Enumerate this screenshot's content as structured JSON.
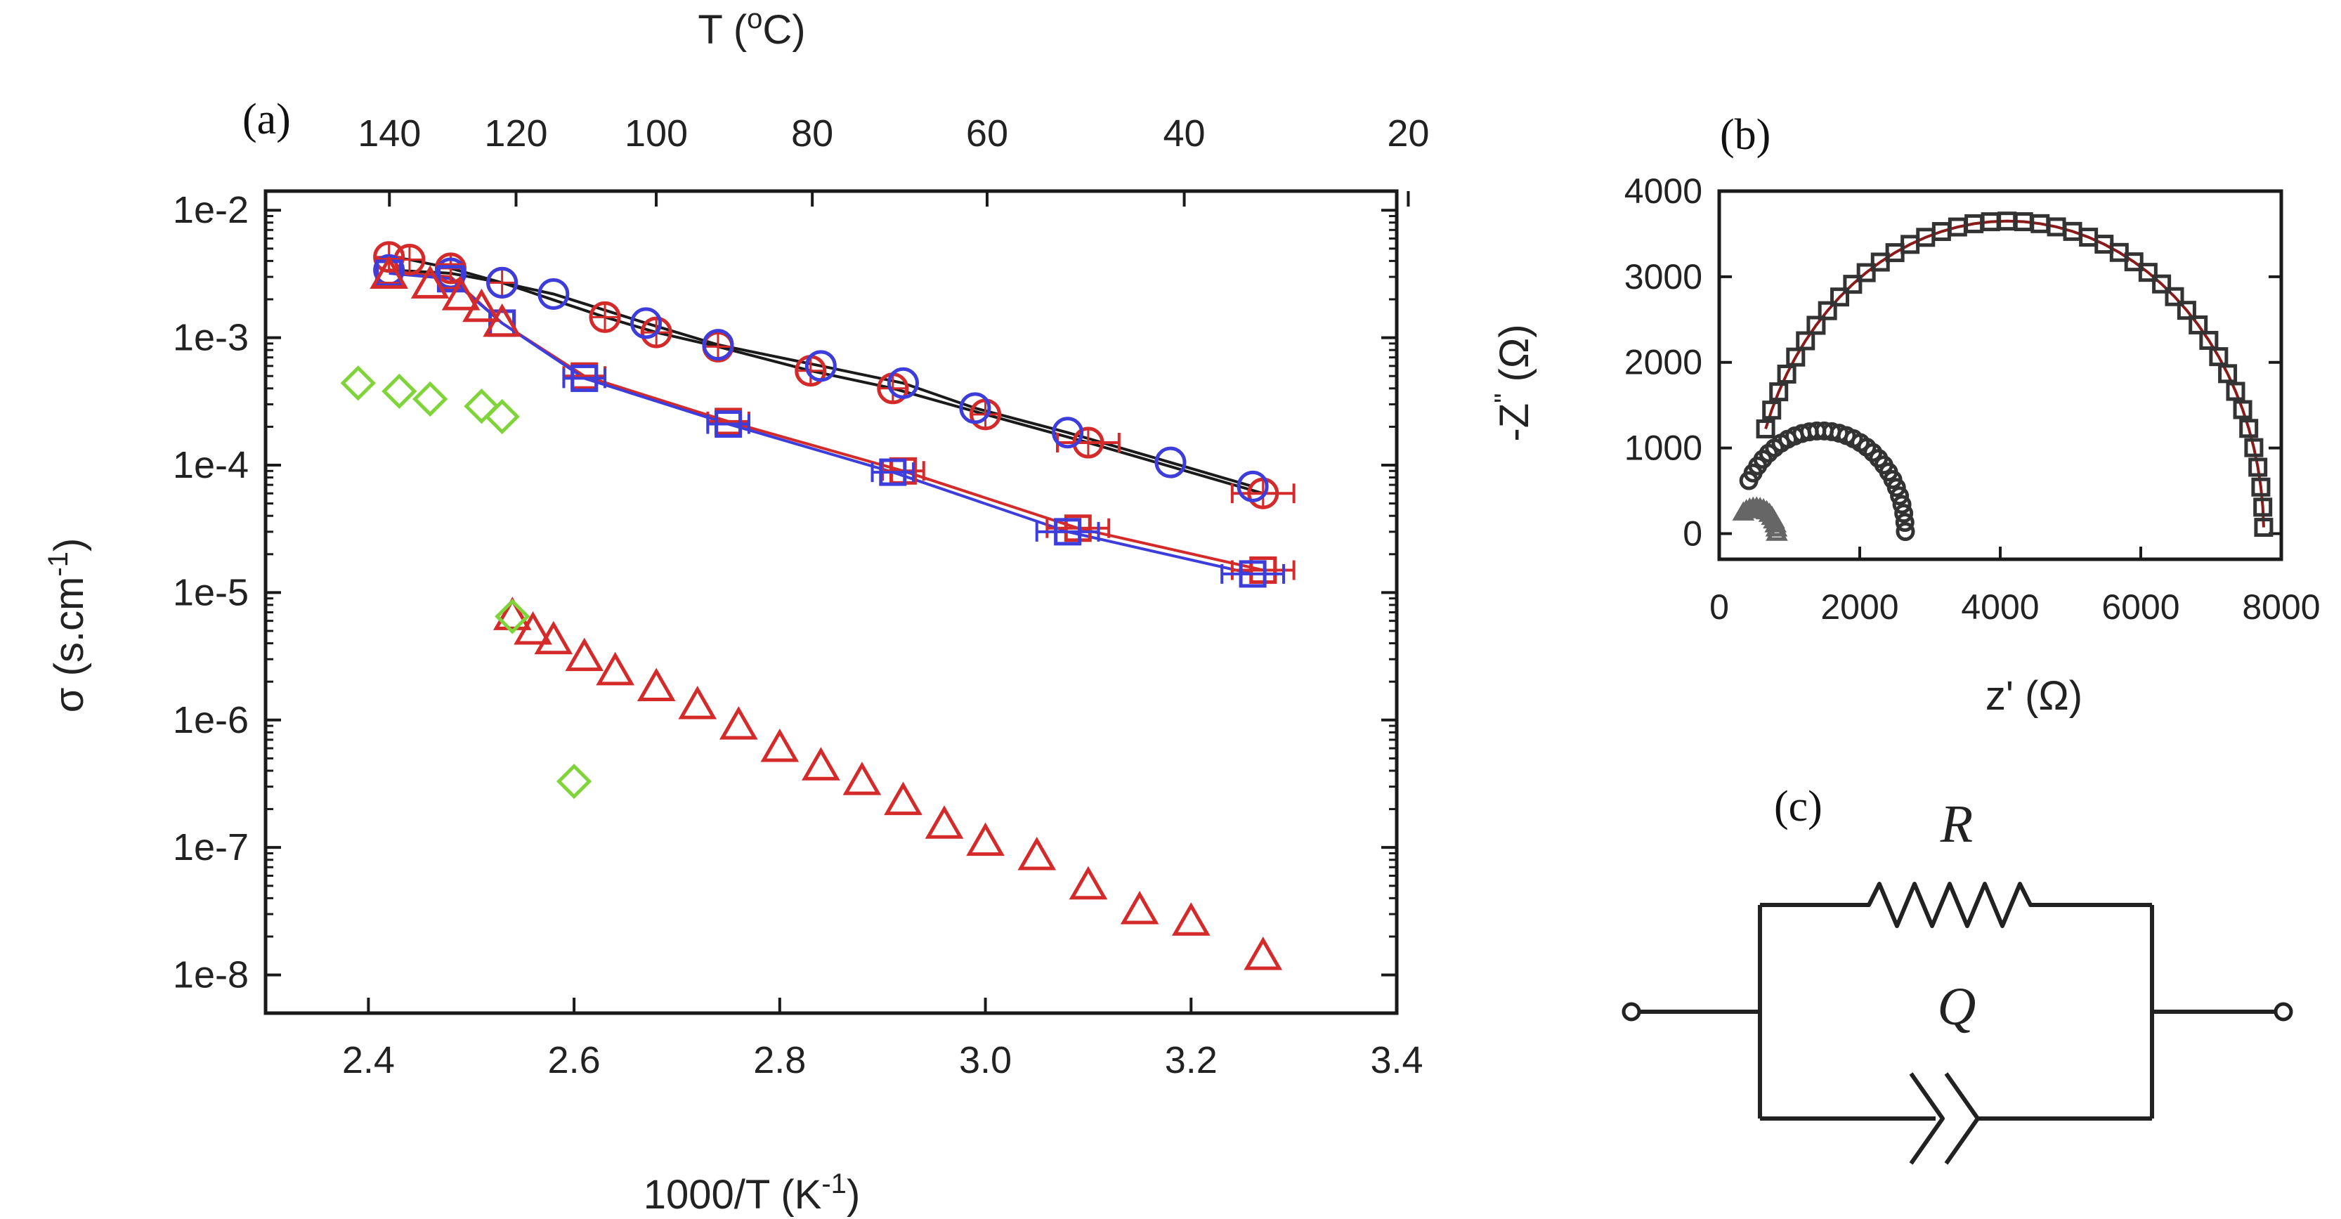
{
  "chart_data": [
    {
      "panel": "(a)",
      "type": "scatter",
      "xlabel": "1000/T (K",
      "xlabel_sup": "-1",
      "xlabel_close": ")",
      "ylabel": "σ (s.cm",
      "ylabel_sup": "-1",
      "ylabel_close": ")",
      "top_label": "T (",
      "top_label_sup": "o",
      "top_label_close": "C)",
      "xlim": [
        2.3,
        3.4
      ],
      "ylim_log10": [
        -8.3,
        -1.85
      ],
      "xticks": [
        "2.4",
        "2.6",
        "2.8",
        "3.0",
        "3.2",
        "3.4"
      ],
      "xtick_values": [
        2.4,
        2.6,
        2.8,
        3.0,
        3.2,
        3.4
      ],
      "yticks": [
        "1e-2",
        "1e-3",
        "1e-4",
        "1e-5",
        "1e-6",
        "1e-7",
        "1e-8"
      ],
      "ytick_exponents": [
        -2,
        -3,
        -4,
        -5,
        -6,
        -7,
        -8
      ],
      "top_ticks": [
        "140",
        "120",
        "100",
        "80",
        "60",
        "40",
        "20"
      ],
      "top_tick_celsius": [
        140,
        120,
        100,
        80,
        60,
        40,
        20
      ],
      "series": [
        {
          "name": "red-circles",
          "marker": "circle",
          "color": "#d42a2a",
          "line": "#1a1a1a",
          "x": [
            2.42,
            2.44,
            2.48,
            2.53,
            2.63,
            2.68,
            2.74,
            2.83,
            2.91,
            3.0,
            3.1,
            3.27
          ],
          "y": [
            0.0043,
            0.0041,
            0.0035,
            0.0027,
            0.00145,
            0.0011,
            0.00085,
            0.00055,
            0.0004,
            0.00025,
            0.00015,
            6e-05
          ],
          "xerr": [
            0,
            0,
            0,
            0,
            0,
            0,
            0,
            0,
            0,
            0,
            0.03,
            0.03
          ]
        },
        {
          "name": "blue-circles",
          "marker": "circle",
          "color": "#3d3ddb",
          "line": "#1a1a1a",
          "x": [
            2.42,
            2.48,
            2.53,
            2.58,
            2.67,
            2.74,
            2.84,
            2.92,
            2.99,
            3.08,
            3.18,
            3.26
          ],
          "y": [
            0.0034,
            0.0032,
            0.0027,
            0.0022,
            0.0013,
            0.00088,
            0.0006,
            0.00044,
            0.00028,
            0.00018,
            0.000105,
            6.8e-05
          ],
          "xerr": [
            0,
            0,
            0,
            0,
            0,
            0,
            0,
            0,
            0,
            0,
            0,
            0
          ]
        },
        {
          "name": "red-squares",
          "marker": "square",
          "color": "#d42a2a",
          "line": "#d42a2a",
          "x": [
            2.42,
            2.48,
            2.53,
            2.61,
            2.75,
            2.92,
            3.09,
            3.27
          ],
          "y": [
            0.0033,
            0.003,
            0.0013,
            0.0005,
            0.00022,
            9e-05,
            3.2e-05,
            1.5e-05
          ],
          "xerr": [
            0,
            0,
            0,
            0.02,
            0.02,
            0.02,
            0.03,
            0.03
          ]
        },
        {
          "name": "blue-squares",
          "marker": "square",
          "color": "#3d3ddb",
          "line": "#3d3ddb",
          "x": [
            2.42,
            2.48,
            2.53,
            2.61,
            2.75,
            2.91,
            3.08,
            3.26
          ],
          "y": [
            0.0032,
            0.0029,
            0.0013,
            0.00048,
            0.00021,
            8.8e-05,
            3e-05,
            1.4e-05
          ],
          "xerr": [
            0,
            0,
            0,
            0.02,
            0.02,
            0.02,
            0.03,
            0.03
          ]
        },
        {
          "name": "red-triangles-upper",
          "marker": "triangle",
          "color": "#d42a2a",
          "line": "none",
          "x": [
            2.42,
            2.46,
            2.49,
            2.51,
            2.53
          ],
          "y": [
            0.0031,
            0.0026,
            0.0021,
            0.0017,
            0.0013
          ],
          "xerr": [
            0,
            0,
            0,
            0,
            0
          ]
        },
        {
          "name": "red-triangles-lower",
          "marker": "triangle",
          "color": "#d42a2a",
          "line": "none",
          "x": [
            2.54,
            2.56,
            2.58,
            2.61,
            2.64,
            2.68,
            2.72,
            2.76,
            2.8,
            2.84,
            2.88,
            2.92,
            2.96,
            3.0,
            3.05,
            3.1,
            3.15,
            3.2,
            3.27
          ],
          "y": [
            6.5e-06,
            5e-06,
            4.2e-06,
            3.1e-06,
            2.4e-06,
            1.8e-06,
            1.3e-06,
            9e-07,
            6e-07,
            4.3e-07,
            3.3e-07,
            2.3e-07,
            1.5e-07,
            1.1e-07,
            8.5e-08,
            5e-08,
            3.2e-08,
            2.6e-08,
            1.4e-08
          ],
          "xerr": []
        },
        {
          "name": "green-diamonds",
          "marker": "diamond",
          "color": "#7fd43a",
          "line": "none",
          "x": [
            2.39,
            2.43,
            2.46,
            2.51,
            2.53,
            2.54,
            2.6
          ],
          "y": [
            0.00044,
            0.00038,
            0.00033,
            0.00029,
            0.00024,
            6.5e-06,
            3.3e-07
          ],
          "xerr": []
        }
      ]
    },
    {
      "panel": "(b)",
      "type": "scatter",
      "xlabel": "z' (Ω)",
      "ylabel": "-Z",
      "ylabel_sup": "\"",
      "ylabel_close": " (Ω)",
      "xlim": [
        0,
        8000
      ],
      "ylim": [
        -300,
        4000
      ],
      "xticks": [
        "0",
        "2000",
        "4000",
        "6000",
        "8000"
      ],
      "xtick_values": [
        0,
        2000,
        4000,
        6000,
        8000
      ],
      "yticks": [
        "0",
        "1000",
        "2000",
        "3000",
        "4000"
      ],
      "ytick_values": [
        0,
        1000,
        2000,
        3000,
        4000
      ],
      "series": [
        {
          "name": "squares-large-arc",
          "marker": "square",
          "color": "#333333",
          "center": 4100,
          "radius": 3650,
          "fit_color": "#8b1a1a"
        },
        {
          "name": "circles-medium-arc",
          "marker": "circle",
          "color": "#333333",
          "center": 1450,
          "radius": 1200
        },
        {
          "name": "triangles-small-arc",
          "marker": "triangle",
          "color": "#666666",
          "center": 520,
          "radius": 300
        }
      ]
    },
    {
      "panel": "(c)",
      "type": "circuit",
      "resistor_label": "R",
      "cpe_label": "Q"
    }
  ]
}
